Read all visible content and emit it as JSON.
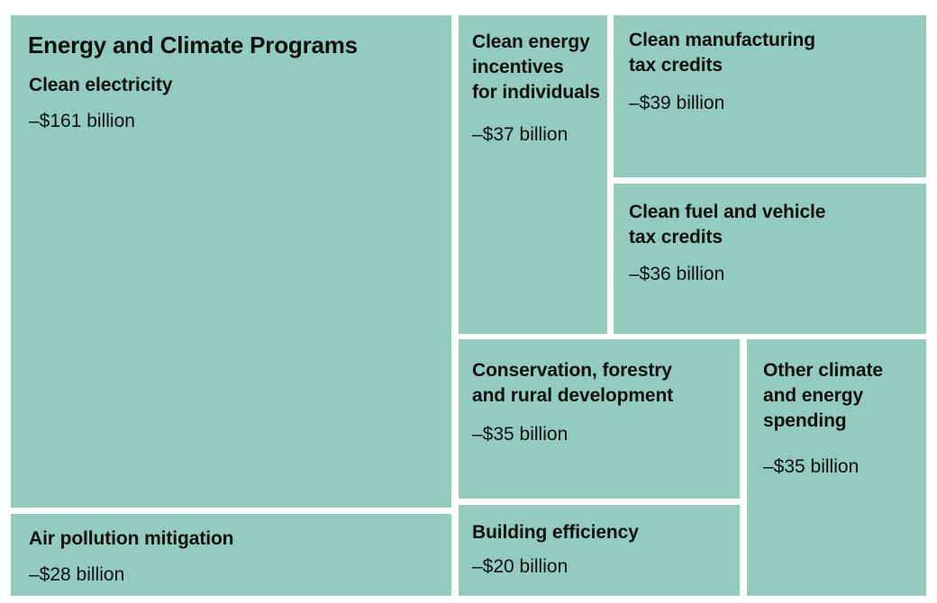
{
  "chart_data": {
    "type": "treemap",
    "title": "Energy and Climate Programs",
    "unit": "billion",
    "fill_color": "#93cbbc",
    "items": [
      {
        "id": "clean-electricity",
        "label": [
          "Clean electricity"
        ],
        "value": -161,
        "value_label": "–$161 billion"
      },
      {
        "id": "air-pollution",
        "label": [
          "Air pollution mitigation"
        ],
        "value": -28,
        "value_label": "–$28 billion"
      },
      {
        "id": "clean-energy-individuals",
        "label": [
          "Clean energy",
          "incentives",
          "for individuals"
        ],
        "value": -37,
        "value_label": "–$37 billion"
      },
      {
        "id": "clean-manufacturing",
        "label": [
          "Clean manufacturing",
          "tax credits"
        ],
        "value": -39,
        "value_label": "–$39 billion"
      },
      {
        "id": "clean-fuel-vehicle",
        "label": [
          "Clean fuel and vehicle",
          "tax credits"
        ],
        "value": -36,
        "value_label": "–$36 billion"
      },
      {
        "id": "conservation",
        "label": [
          "Conservation, forestry",
          "and rural development"
        ],
        "value": -35,
        "value_label": "–$35 billion"
      },
      {
        "id": "other-climate",
        "label": [
          "Other climate",
          "and energy",
          "spending"
        ],
        "value": -35,
        "value_label": "–$35 billion"
      },
      {
        "id": "building-efficiency",
        "label": [
          "Building efficiency"
        ],
        "value": -20,
        "value_label": "–$20 billion"
      }
    ]
  }
}
